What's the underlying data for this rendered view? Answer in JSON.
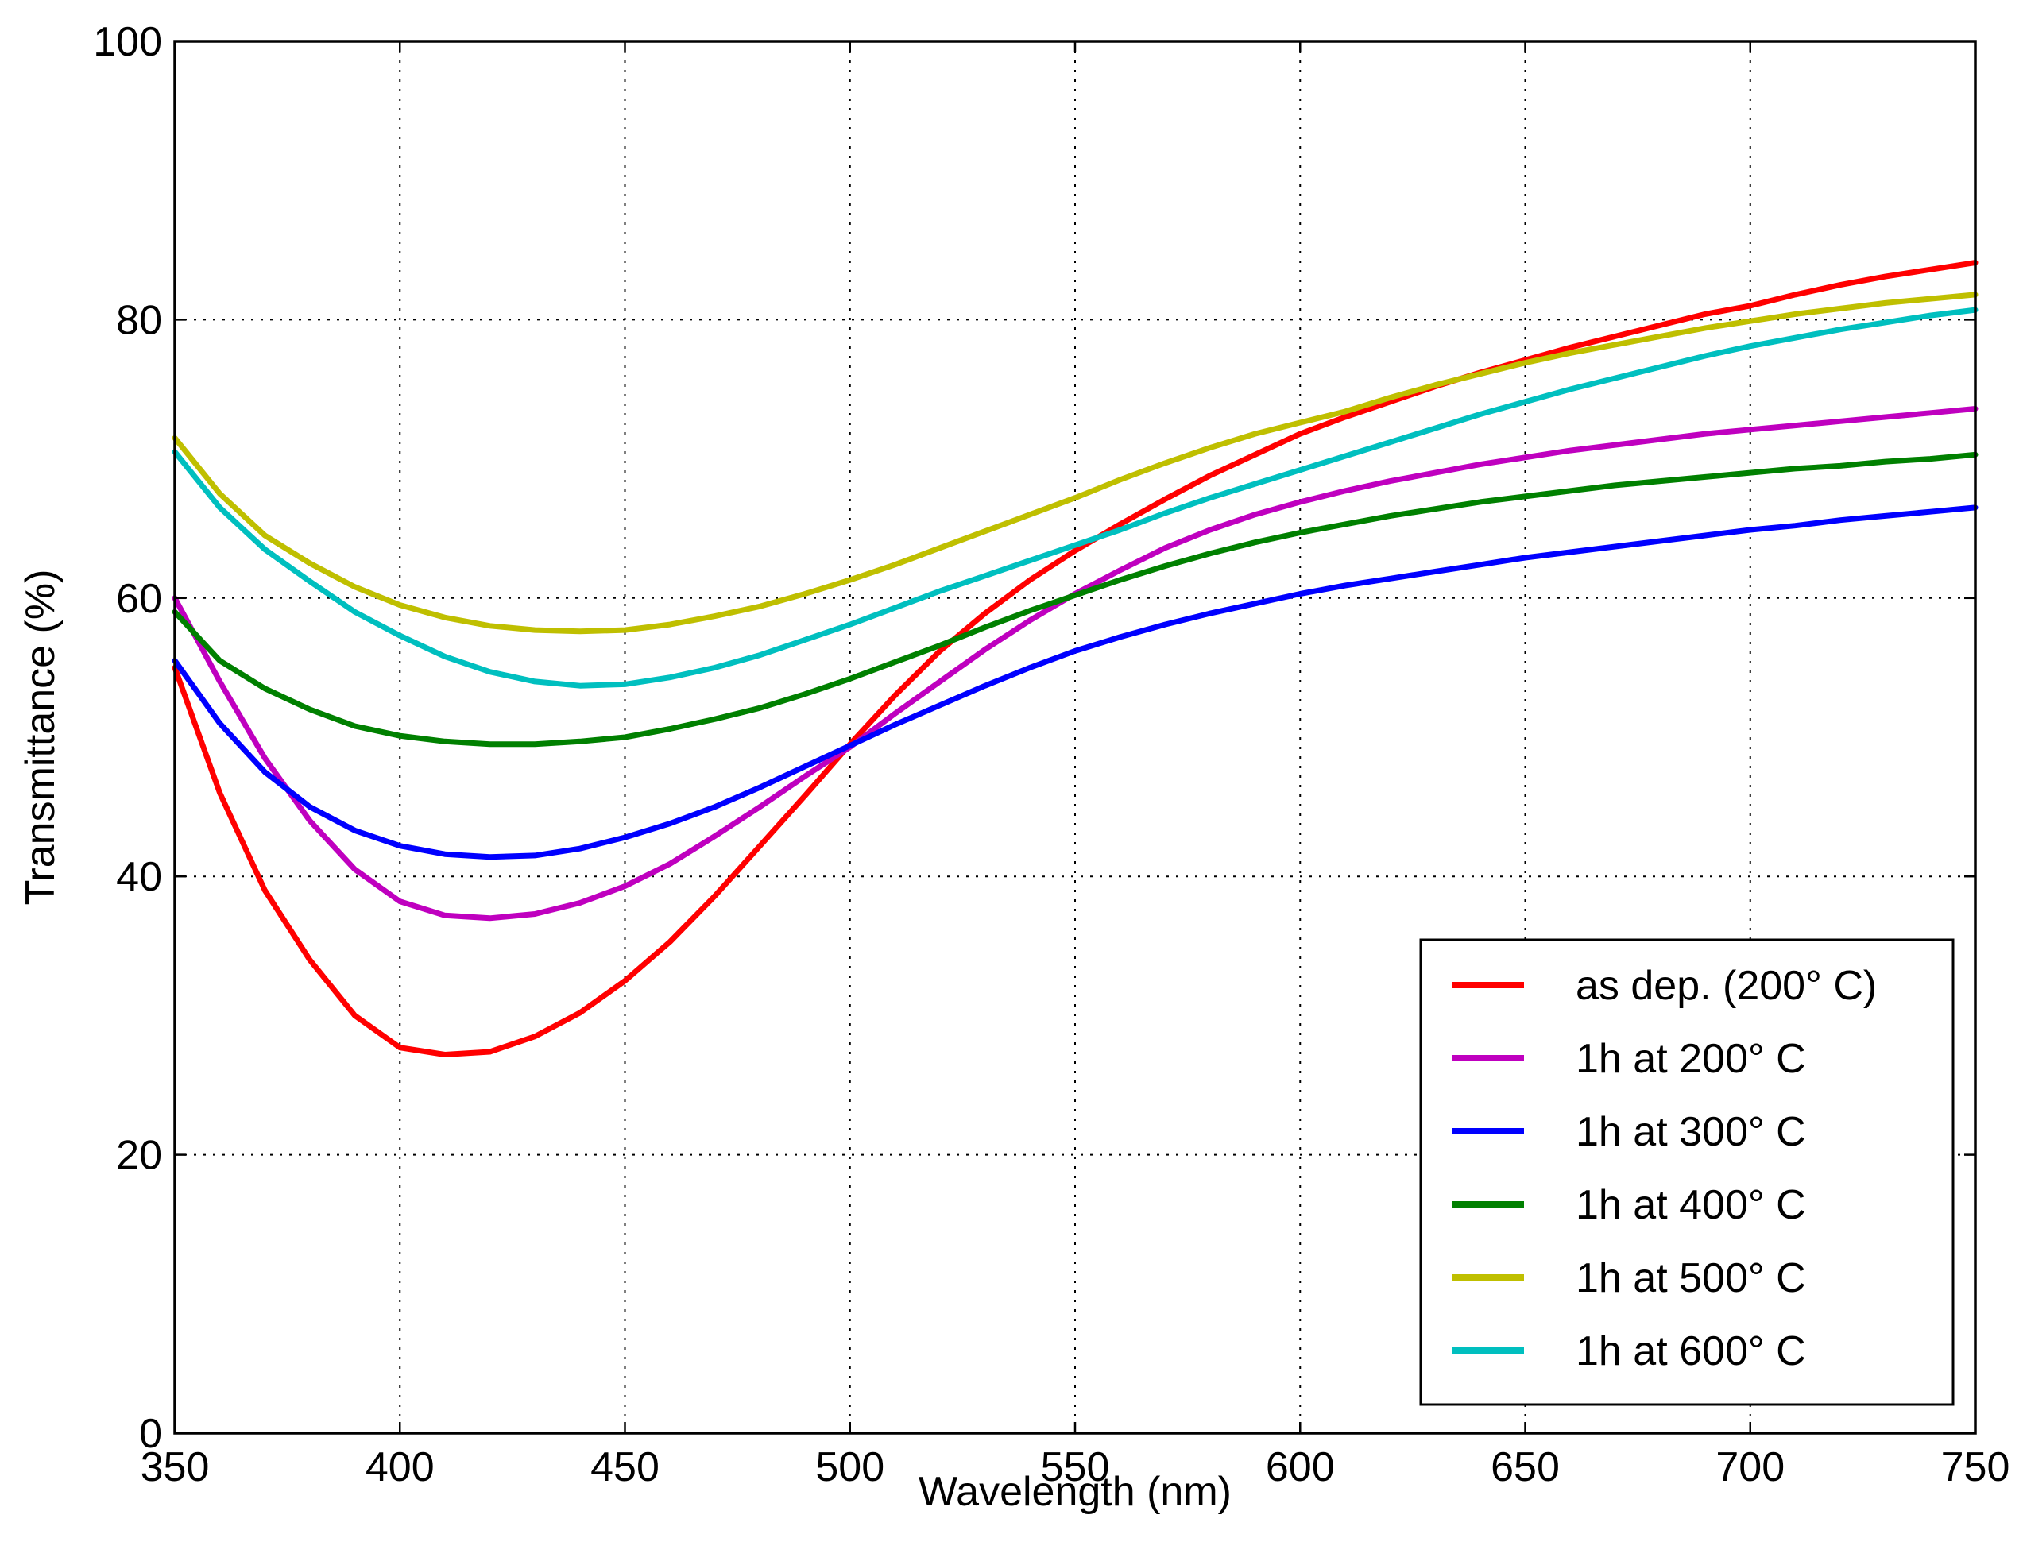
{
  "chart_data": {
    "type": "line",
    "title": "",
    "xlabel": "Wavelength (nm)",
    "ylabel": "Transmittance (%)",
    "xlim": [
      350,
      750
    ],
    "ylim": [
      0,
      100
    ],
    "xticks": [
      350,
      400,
      450,
      500,
      550,
      600,
      650,
      700,
      750
    ],
    "yticks": [
      0,
      20,
      40,
      60,
      80,
      100
    ],
    "grid": true,
    "legend_position": "lower-right",
    "x": [
      350,
      360,
      370,
      380,
      390,
      400,
      410,
      420,
      430,
      440,
      450,
      460,
      470,
      480,
      490,
      500,
      510,
      520,
      530,
      540,
      550,
      560,
      570,
      580,
      590,
      600,
      610,
      620,
      630,
      640,
      650,
      660,
      670,
      680,
      690,
      700,
      710,
      720,
      730,
      740,
      750
    ],
    "series": [
      {
        "name": "as dep. (200°C)",
        "color": "#ff0000",
        "values": [
          55,
          46,
          39,
          34,
          30,
          27.7,
          27.2,
          27.4,
          28.5,
          30.2,
          32.5,
          35.3,
          38.6,
          42.2,
          45.8,
          49.5,
          53,
          56.2,
          58.9,
          61.3,
          63.4,
          65.3,
          67.1,
          68.8,
          70.3,
          71.8,
          73,
          74.1,
          75.2,
          76.2,
          77.1,
          78,
          78.8,
          79.6,
          80.4,
          81,
          81.8,
          82.5,
          83.1,
          83.6,
          84.1
        ]
      },
      {
        "name": "1h at 200°C",
        "color": "#bf00bf",
        "values": [
          60,
          54,
          48.5,
          44,
          40.5,
          38.2,
          37.2,
          37,
          37.3,
          38.1,
          39.3,
          40.9,
          42.9,
          45,
          47.2,
          49.3,
          51.7,
          54,
          56.3,
          58.4,
          60.3,
          62,
          63.6,
          64.9,
          66,
          66.9,
          67.7,
          68.4,
          69,
          69.6,
          70.1,
          70.6,
          71,
          71.4,
          71.8,
          72.1,
          72.4,
          72.7,
          73,
          73.3,
          73.6
        ]
      },
      {
        "name": "1h at 300°C",
        "color": "#0000ff",
        "values": [
          55.5,
          51,
          47.5,
          45,
          43.3,
          42.2,
          41.6,
          41.4,
          41.5,
          42,
          42.8,
          43.8,
          45,
          46.4,
          47.9,
          49.4,
          50.9,
          52.3,
          53.7,
          55,
          56.2,
          57.2,
          58.1,
          58.9,
          59.6,
          60.3,
          60.9,
          61.4,
          61.9,
          62.4,
          62.9,
          63.3,
          63.7,
          64.1,
          64.5,
          64.9,
          65.2,
          65.6,
          65.9,
          66.2,
          66.5
        ]
      },
      {
        "name": "1h at 400°C",
        "color": "#008000",
        "values": [
          59,
          55.5,
          53.5,
          52,
          50.8,
          50.1,
          49.7,
          49.5,
          49.5,
          49.7,
          50,
          50.6,
          51.3,
          52.1,
          53.1,
          54.2,
          55.4,
          56.6,
          57.9,
          59.1,
          60.2,
          61.3,
          62.3,
          63.2,
          64,
          64.7,
          65.3,
          65.9,
          66.4,
          66.9,
          67.3,
          67.7,
          68.1,
          68.4,
          68.7,
          69,
          69.3,
          69.5,
          69.8,
          70,
          70.3
        ]
      },
      {
        "name": "1h at 500°C",
        "color": "#bfbf00",
        "values": [
          71.5,
          67.5,
          64.5,
          62.5,
          60.8,
          59.5,
          58.6,
          58,
          57.7,
          57.6,
          57.7,
          58.1,
          58.7,
          59.4,
          60.3,
          61.3,
          62.4,
          63.6,
          64.8,
          66,
          67.2,
          68.5,
          69.7,
          70.8,
          71.8,
          72.6,
          73.4,
          74.4,
          75.3,
          76.1,
          76.9,
          77.6,
          78.2,
          78.8,
          79.4,
          79.9,
          80.4,
          80.8,
          81.2,
          81.5,
          81.8
        ]
      },
      {
        "name": "1h at 600°C",
        "color": "#00bfbf",
        "values": [
          70.5,
          66.5,
          63.5,
          61.2,
          59,
          57.3,
          55.8,
          54.7,
          54,
          53.7,
          53.8,
          54.3,
          55,
          55.9,
          57,
          58.1,
          59.3,
          60.5,
          61.6,
          62.7,
          63.8,
          64.9,
          66.1,
          67.2,
          68.2,
          69.2,
          70.2,
          71.2,
          72.2,
          73.2,
          74.1,
          75,
          75.8,
          76.6,
          77.4,
          78.1,
          78.7,
          79.3,
          79.8,
          80.3,
          80.7
        ]
      }
    ],
    "legend": {
      "entries": [
        {
          "label": "as dep. (200° C)"
        },
        {
          "label": "1h at 200° C"
        },
        {
          "label": "1h at 300° C"
        },
        {
          "label": "1h at 400° C"
        },
        {
          "label": "1h at 500° C"
        },
        {
          "label": "1h at 600° C"
        }
      ]
    }
  }
}
